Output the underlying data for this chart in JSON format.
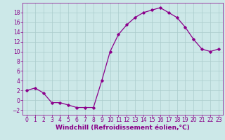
{
  "x": [
    0,
    1,
    2,
    3,
    4,
    5,
    6,
    7,
    8,
    9,
    10,
    11,
    12,
    13,
    14,
    15,
    16,
    17,
    18,
    19,
    20,
    21,
    22,
    23
  ],
  "y": [
    2,
    2.5,
    1.5,
    -0.5,
    -0.5,
    -1,
    -1.5,
    -1.5,
    -1.5,
    4,
    10,
    13.5,
    15.5,
    17,
    18,
    18.5,
    19,
    18,
    17,
    15,
    12.5,
    10.5,
    10,
    10.5
  ],
  "line_color": "#8B008B",
  "marker": "D",
  "marker_size": 1.8,
  "line_width": 0.9,
  "xlim": [
    -0.5,
    23.5
  ],
  "ylim": [
    -3,
    20
  ],
  "yticks": [
    -2,
    0,
    2,
    4,
    6,
    8,
    10,
    12,
    14,
    16,
    18
  ],
  "xticks": [
    0,
    1,
    2,
    3,
    4,
    5,
    6,
    7,
    8,
    9,
    10,
    11,
    12,
    13,
    14,
    15,
    16,
    17,
    18,
    19,
    20,
    21,
    22,
    23
  ],
  "xlabel": "Windchill (Refroidissement éolien,°C)",
  "bg_color": "#cce8e8",
  "grid_color": "#aacccc",
  "label_color": "#880088",
  "tick_color": "#880088",
  "tick_fontsize": 5.5,
  "xlabel_fontsize": 6.5
}
